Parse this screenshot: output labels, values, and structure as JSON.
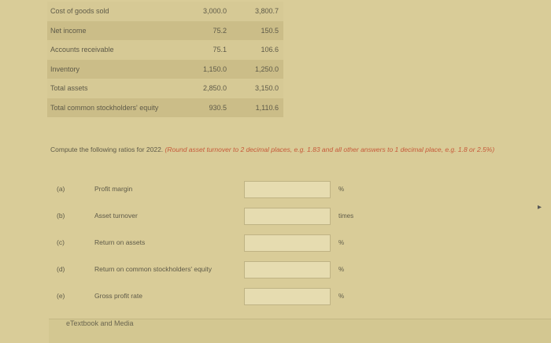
{
  "table": [
    {
      "label": "Cost of goods sold",
      "y2021": "3,000.0",
      "y2022": "3,800.7"
    },
    {
      "label": "Net income",
      "y2021": "75.2",
      "y2022": "150.5"
    },
    {
      "label": "Accounts receivable",
      "y2021": "75.1",
      "y2022": "106.6"
    },
    {
      "label": "Inventory",
      "y2021": "1,150.0",
      "y2022": "1,250.0"
    },
    {
      "label": "Total assets",
      "y2021": "2,850.0",
      "y2022": "3,150.0"
    },
    {
      "label": "Total common stockholders' equity",
      "y2021": "930.5",
      "y2022": "1,110.6"
    }
  ],
  "instructions": {
    "main": "Compute the following ratios for 2022.",
    "note": "(Round asset turnover to 2 decimal places, e.g. 1.83 and all other answers to 1 decimal place, e.g. 1.8 or 2.5%)"
  },
  "questions": [
    {
      "letter": "(a)",
      "text": "Profit margin",
      "unit": "%",
      "value": ""
    },
    {
      "letter": "(b)",
      "text": "Asset turnover",
      "unit": "times",
      "value": ""
    },
    {
      "letter": "(c)",
      "text": "Return on assets",
      "unit": "%",
      "value": ""
    },
    {
      "letter": "(d)",
      "text": "Return on common stockholders' equity",
      "unit": "%",
      "value": ""
    },
    {
      "letter": "(e)",
      "text": "Gross profit rate",
      "unit": "%",
      "value": ""
    }
  ],
  "footer": "eTextbook and Media"
}
